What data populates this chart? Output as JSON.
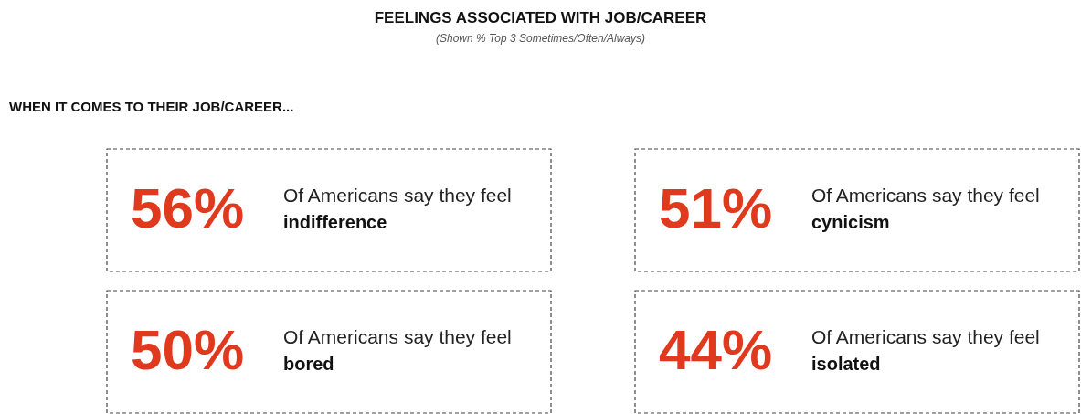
{
  "chart_data": {
    "type": "other",
    "title": "FEELINGS ASSOCIATED WITH JOB/CAREER",
    "subtitle": "(Shown % Top 3 Sometimes/Often/Always)",
    "annotations": [
      "WHEN IT COMES TO THEIR JOB/CAREER...",
      "Of Americans say they feel"
    ],
    "categories": [
      "indifference",
      "cynicism",
      "bored",
      "isolated"
    ],
    "values": [
      56,
      51,
      50,
      44
    ],
    "value_labels": [
      "56%",
      "51%",
      "50%",
      "44%"
    ],
    "color": "#e03a1e"
  }
}
